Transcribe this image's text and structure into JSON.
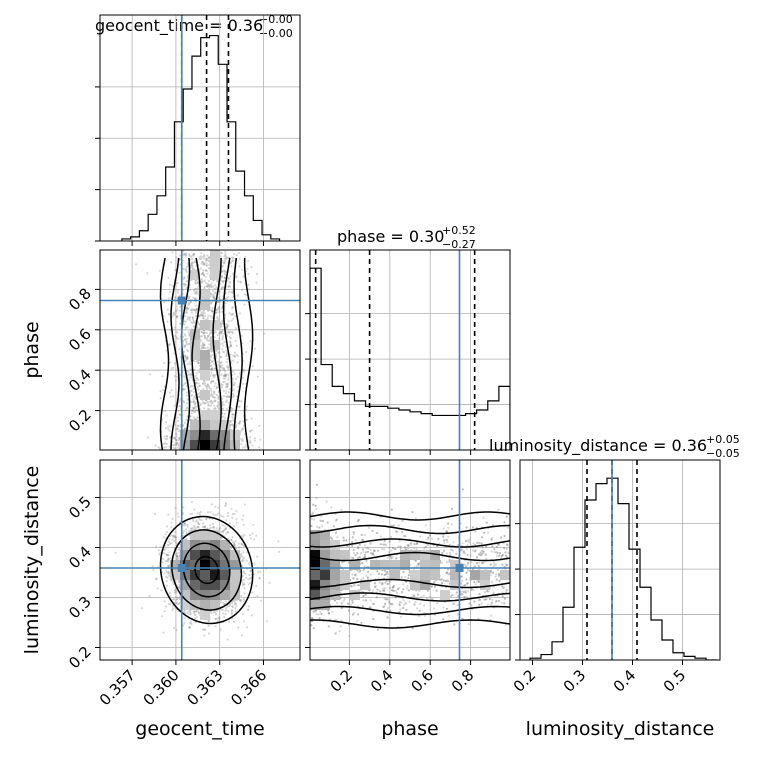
{
  "colors": {
    "truth": "#4682b4",
    "hist": "#000000",
    "grid": "#b0b0b0",
    "points": "#8c8c8c"
  },
  "chart_data": {
    "type": "corner",
    "params": [
      "geocent_time",
      "phase",
      "luminosity_distance"
    ],
    "axis_labels": {
      "geocent_time": "geocent_time",
      "phase": "phase",
      "luminosity_distance": "luminosity_distance"
    },
    "ranges": {
      "geocent_time": [
        0.3548,
        0.3685
      ],
      "phase": [
        0.005,
        0.995
      ],
      "luminosity_distance": [
        0.175,
        0.575
      ]
    },
    "ticks": {
      "geocent_time": [
        0.357,
        0.36,
        0.363,
        0.366
      ],
      "phase": [
        0.2,
        0.4,
        0.6,
        0.8
      ],
      "luminosity_distance": [
        0.2,
        0.3,
        0.4,
        0.5
      ]
    },
    "tick_labels": {
      "geocent_time": [
        "0.357",
        "0.360",
        "0.363",
        "0.366"
      ],
      "phase": [
        "0.2",
        "0.4",
        "0.6",
        "0.8"
      ],
      "luminosity_distance": [
        "0.2",
        "0.3",
        "0.4",
        "0.5"
      ]
    },
    "truths": {
      "geocent_time": 0.3604,
      "phase": 0.745,
      "luminosity_distance": 0.359
    },
    "titles": [
      {
        "param": "geocent_time",
        "text": "geocent_time = 0.36",
        "plus": "+0.00",
        "minus": "−0.00"
      },
      {
        "param": "phase",
        "text": "phase = 0.30",
        "plus": "+0.52",
        "minus": "−0.27"
      },
      {
        "param": "luminosity_distance",
        "text": "luminosity_distance = 0.36",
        "plus": "+0.05",
        "minus": "−0.05"
      }
    ],
    "quantiles": {
      "geocent_time": [
        0.3604,
        0.3621,
        0.3636
      ],
      "phase": [
        0.033,
        0.3,
        0.82
      ],
      "luminosity_distance": [
        0.309,
        0.359,
        0.409
      ]
    },
    "histograms": {
      "geocent_time": {
        "edges": [
          0.3563,
          0.3569,
          0.3575,
          0.3581,
          0.3587,
          0.3593,
          0.3599,
          0.3605,
          0.3611,
          0.3617,
          0.3623,
          0.3629,
          0.3635,
          0.3641,
          0.3647,
          0.3653,
          0.3659,
          0.3665,
          0.3671
        ],
        "counts": [
          0.01,
          0.02,
          0.05,
          0.13,
          0.22,
          0.36,
          0.58,
          0.74,
          0.9,
          0.99,
          1.0,
          0.86,
          0.58,
          0.34,
          0.22,
          0.1,
          0.03,
          0.01
        ]
      },
      "phase": {
        "edges": [
          0.005,
          0.06,
          0.115,
          0.17,
          0.225,
          0.28,
          0.335,
          0.39,
          0.445,
          0.5,
          0.555,
          0.61,
          0.665,
          0.72,
          0.775,
          0.83,
          0.885,
          0.94,
          0.995
        ],
        "counts": [
          1.0,
          0.47,
          0.35,
          0.31,
          0.27,
          0.24,
          0.24,
          0.23,
          0.22,
          0.21,
          0.2,
          0.19,
          0.19,
          0.19,
          0.2,
          0.22,
          0.27,
          0.35
        ]
      },
      "luminosity_distance": {
        "edges": [
          0.195,
          0.217,
          0.239,
          0.261,
          0.283,
          0.305,
          0.327,
          0.349,
          0.371,
          0.393,
          0.415,
          0.437,
          0.459,
          0.481,
          0.503,
          0.525,
          0.547,
          0.569
        ],
        "counts": [
          0.01,
          0.03,
          0.1,
          0.29,
          0.62,
          0.88,
          0.97,
          1.0,
          0.86,
          0.61,
          0.4,
          0.22,
          0.11,
          0.04,
          0.02,
          0.01,
          0.0
        ]
      }
    },
    "joint": [
      {
        "x": "geocent_time",
        "y": "phase",
        "density": {
          "mx": 0.3621,
          "sx": 0.0012,
          "my": 0.5,
          "sy": 0.33,
          "extra": "dense_low_phase"
        }
      },
      {
        "x": "geocent_time",
        "y": "luminosity_distance",
        "density": {
          "mx": 0.3621,
          "sx": 0.0013,
          "my": 0.355,
          "sy": 0.045
        }
      },
      {
        "x": "phase",
        "y": "luminosity_distance",
        "density": {
          "mx": 0.5,
          "sx": 0.33,
          "my": 0.355,
          "sy": 0.045,
          "extra": "dense_low_phase"
        }
      }
    ]
  }
}
